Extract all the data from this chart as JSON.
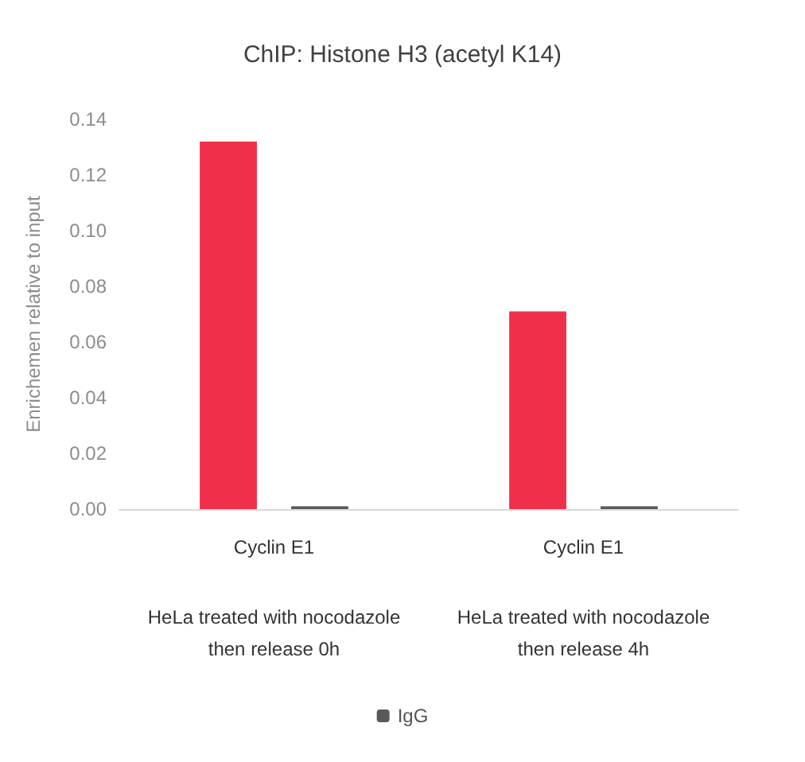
{
  "chart_data": {
    "type": "bar",
    "title": "ChIP: Histone H3 (acetyl K14)",
    "ylabel": "Enrichemen relative to input",
    "categories": [
      "Cyclin E1",
      "Cyclin E1"
    ],
    "series": [
      {
        "color": "#f0304a",
        "values": [
          0.132,
          0.071
        ]
      },
      {
        "name": "IgG",
        "color": "#595959",
        "values": [
          0.001,
          0.001
        ]
      }
    ],
    "ylim": [
      0,
      0.14
    ],
    "yticks": [
      {
        "value": 0,
        "label": "0.00"
      },
      {
        "value": 0.02,
        "label": "0.02"
      },
      {
        "value": 0.04,
        "label": "0.04"
      },
      {
        "value": 0.06,
        "label": "0.06"
      },
      {
        "value": 0.08,
        "label": "0.08"
      },
      {
        "value": 0.1,
        "label": "0.10"
      },
      {
        "value": 0.12,
        "label": "0.12"
      },
      {
        "value": 0.14,
        "label": "0.14"
      }
    ],
    "annotations": [
      "HeLa treated with nocodazole\nthen release 0h",
      "HeLa treated with nocodazole\nthen release 4h"
    ],
    "legend": "bottom"
  }
}
